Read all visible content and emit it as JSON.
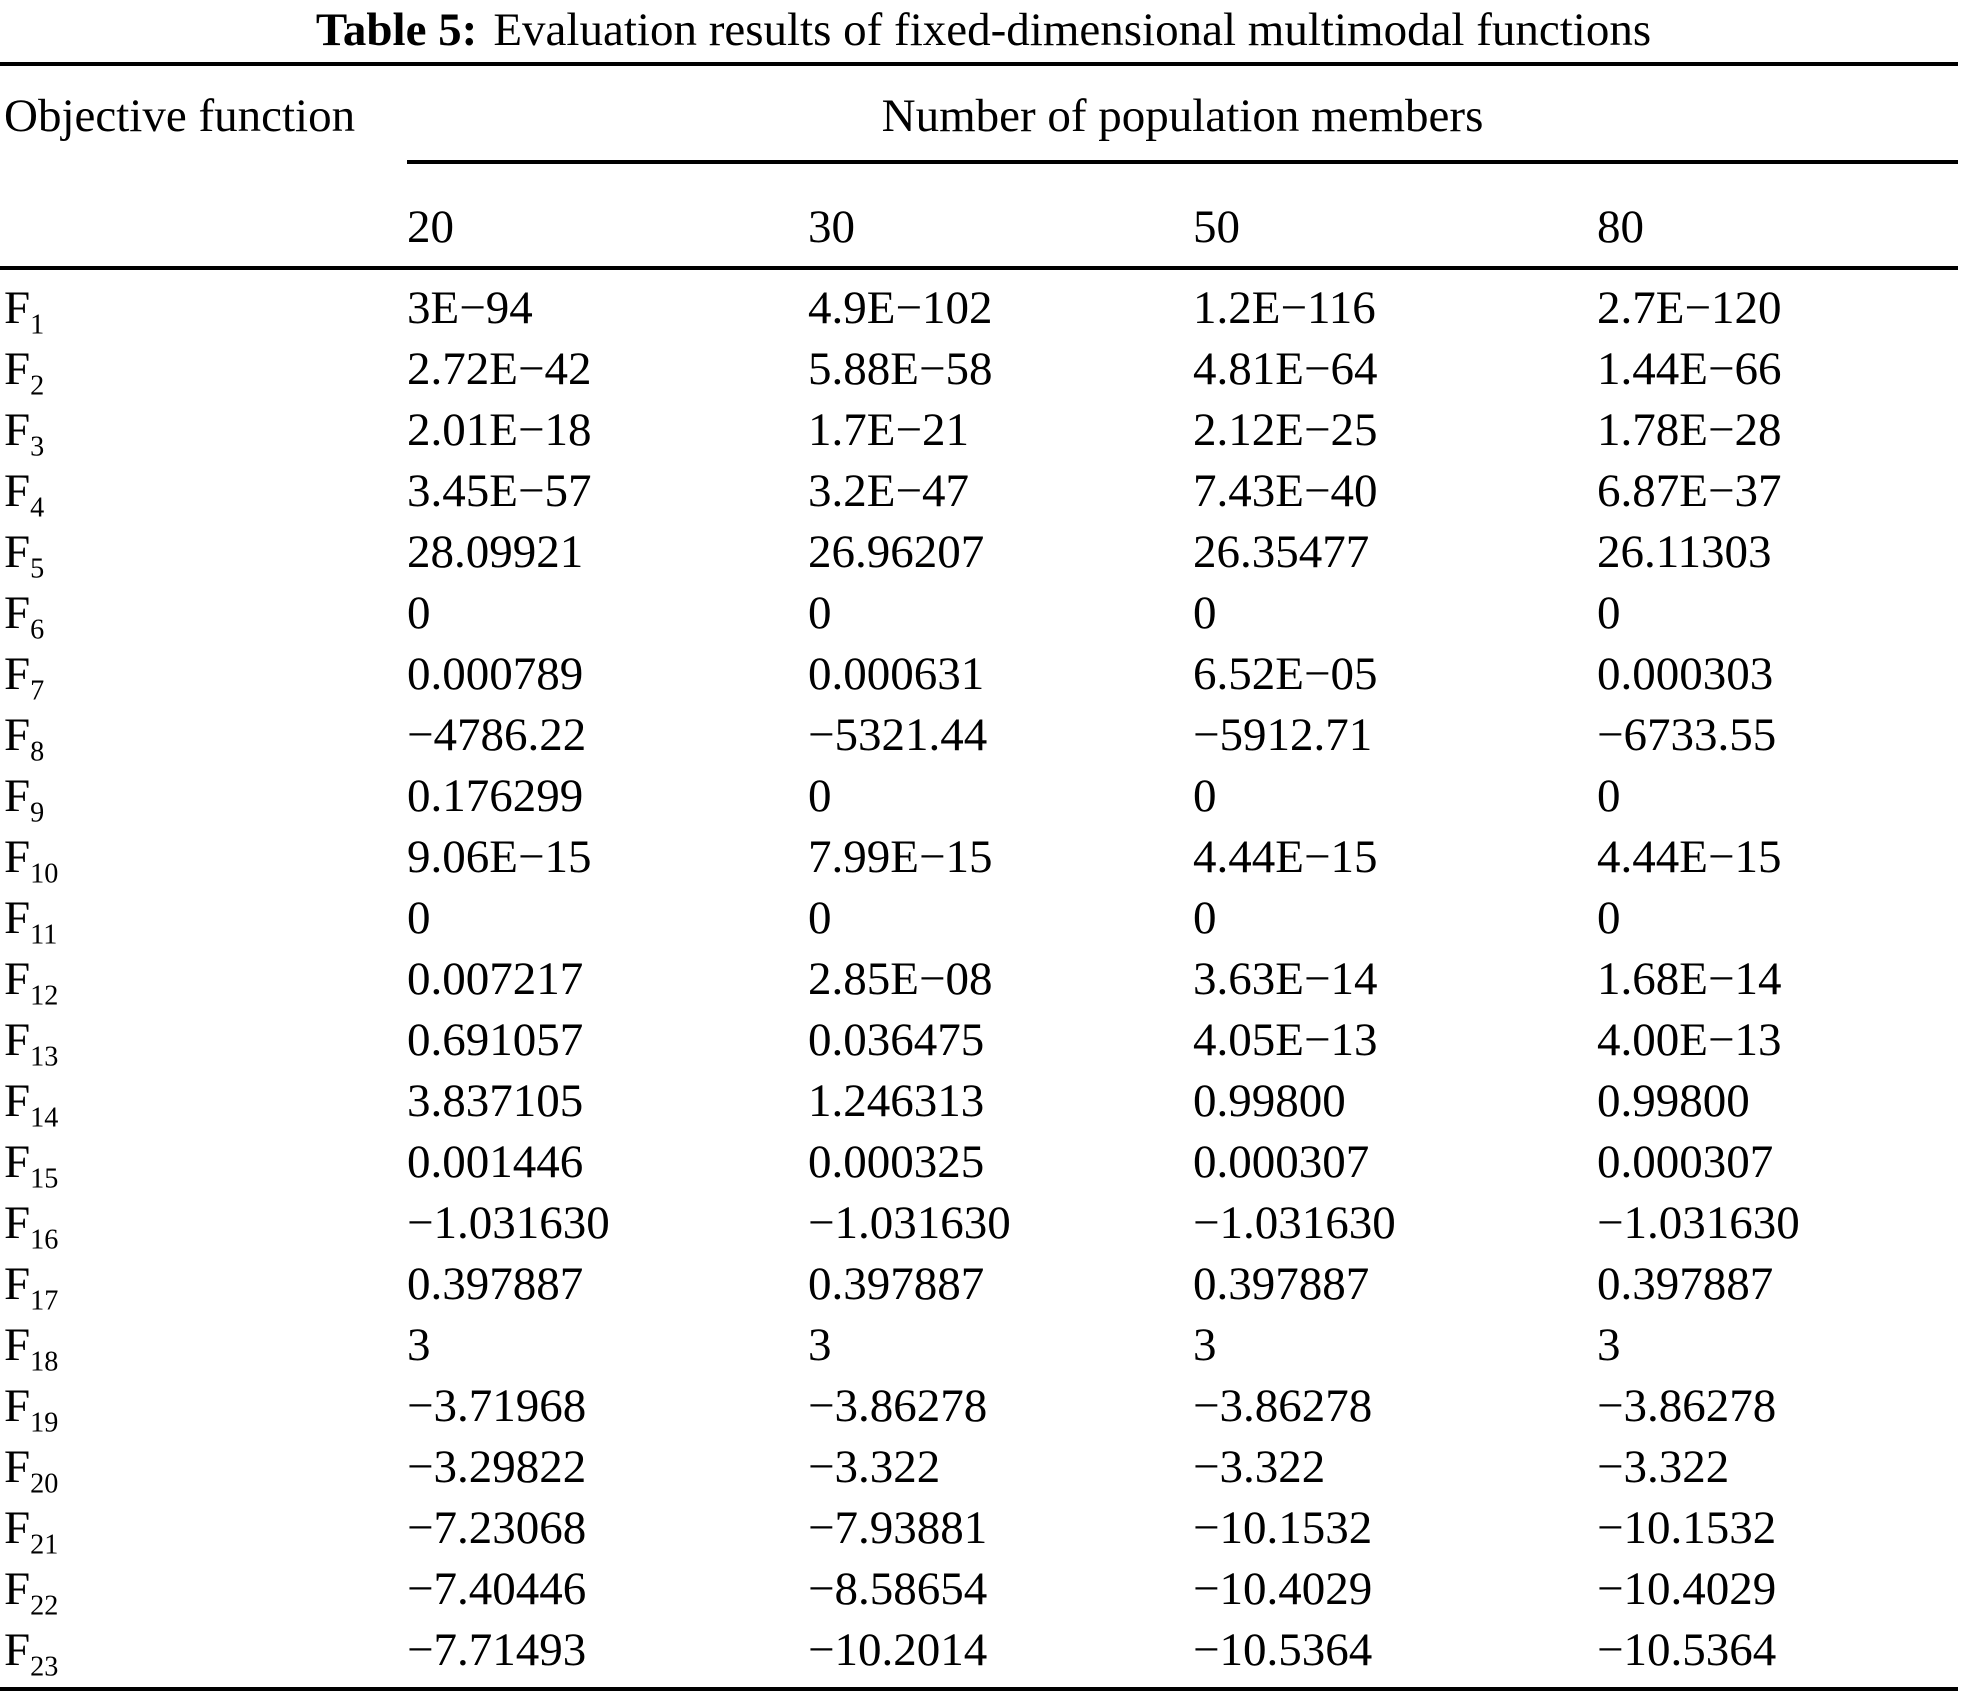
{
  "title": {
    "prefix": "Table 5:",
    "text": "Evaluation results of fixed-dimensional multimodal functions"
  },
  "header": {
    "objective_function_label": "Objective function",
    "population_label": "Number of population members",
    "columns": [
      "20",
      "30",
      "50",
      "80"
    ]
  },
  "chart_data": {
    "type": "table",
    "title": "Table 5: Evaluation results of fixed-dimensional multimodal functions",
    "column_group_label": "Number of population members",
    "row_header": "Objective function",
    "columns": [
      "20",
      "30",
      "50",
      "80"
    ]
  },
  "rows": [
    {
      "label": "F",
      "subscript": "1",
      "values": [
        "3E−94",
        "4.9E−102",
        "1.2E−116",
        "2.7E−120"
      ]
    },
    {
      "label": "F",
      "subscript": "2",
      "values": [
        "2.72E−42",
        "5.88E−58",
        "4.81E−64",
        "1.44E−66"
      ]
    },
    {
      "label": "F",
      "subscript": "3",
      "values": [
        "2.01E−18",
        "1.7E−21",
        "2.12E−25",
        "1.78E−28"
      ]
    },
    {
      "label": "F",
      "subscript": "4",
      "values": [
        "3.45E−57",
        "3.2E−47",
        "7.43E−40",
        "6.87E−37"
      ]
    },
    {
      "label": "F",
      "subscript": "5",
      "values": [
        "28.09921",
        "26.96207",
        "26.35477",
        "26.11303"
      ]
    },
    {
      "label": "F",
      "subscript": "6",
      "values": [
        "0",
        "0",
        "0",
        "0"
      ]
    },
    {
      "label": "F",
      "subscript": "7",
      "values": [
        "0.000789",
        "0.000631",
        "6.52E−05",
        "0.000303"
      ]
    },
    {
      "label": "F",
      "subscript": "8",
      "values": [
        "−4786.22",
        "−5321.44",
        "−5912.71",
        "−6733.55"
      ]
    },
    {
      "label": "F",
      "subscript": "9",
      "values": [
        "0.176299",
        "0",
        "0",
        "0"
      ]
    },
    {
      "label": "F",
      "subscript": "10",
      "values": [
        "9.06E−15",
        "7.99E−15",
        "4.44E−15",
        "4.44E−15"
      ]
    },
    {
      "label": "F",
      "subscript": "11",
      "values": [
        "0",
        "0",
        "0",
        "0"
      ]
    },
    {
      "label": "F",
      "subscript": "12",
      "values": [
        "0.007217",
        "2.85E−08",
        "3.63E−14",
        "1.68E−14"
      ]
    },
    {
      "label": "F",
      "subscript": "13",
      "values": [
        "0.691057",
        "0.036475",
        "4.05E−13",
        "4.00E−13"
      ]
    },
    {
      "label": "F",
      "subscript": "14",
      "values": [
        "3.837105",
        "1.246313",
        "0.99800",
        "0.99800"
      ]
    },
    {
      "label": "F",
      "subscript": "15",
      "values": [
        "0.001446",
        "0.000325",
        "0.000307",
        "0.000307"
      ]
    },
    {
      "label": "F",
      "subscript": "16",
      "values": [
        "−1.031630",
        "−1.031630",
        "−1.031630",
        "−1.031630"
      ]
    },
    {
      "label": "F",
      "subscript": "17",
      "values": [
        "0.397887",
        "0.397887",
        "0.397887",
        "0.397887"
      ]
    },
    {
      "label": "F",
      "subscript": "18",
      "values": [
        "3",
        "3",
        "3",
        "3"
      ]
    },
    {
      "label": "F",
      "subscript": "19",
      "values": [
        "−3.71968",
        "−3.86278",
        "−3.86278",
        "−3.86278"
      ]
    },
    {
      "label": "F",
      "subscript": "20",
      "values": [
        "−3.29822",
        "−3.322",
        "−3.322",
        "−3.322"
      ]
    },
    {
      "label": "F",
      "subscript": "21",
      "values": [
        "−7.23068",
        "−7.93881",
        "−10.1532",
        "−10.1532"
      ]
    },
    {
      "label": "F",
      "subscript": "22",
      "values": [
        "−7.40446",
        "−8.58654",
        "−10.4029",
        "−10.4029"
      ]
    },
    {
      "label": "F",
      "subscript": "23",
      "values": [
        "−7.71493",
        "−10.2014",
        "−10.5364",
        "−10.5364"
      ]
    }
  ]
}
